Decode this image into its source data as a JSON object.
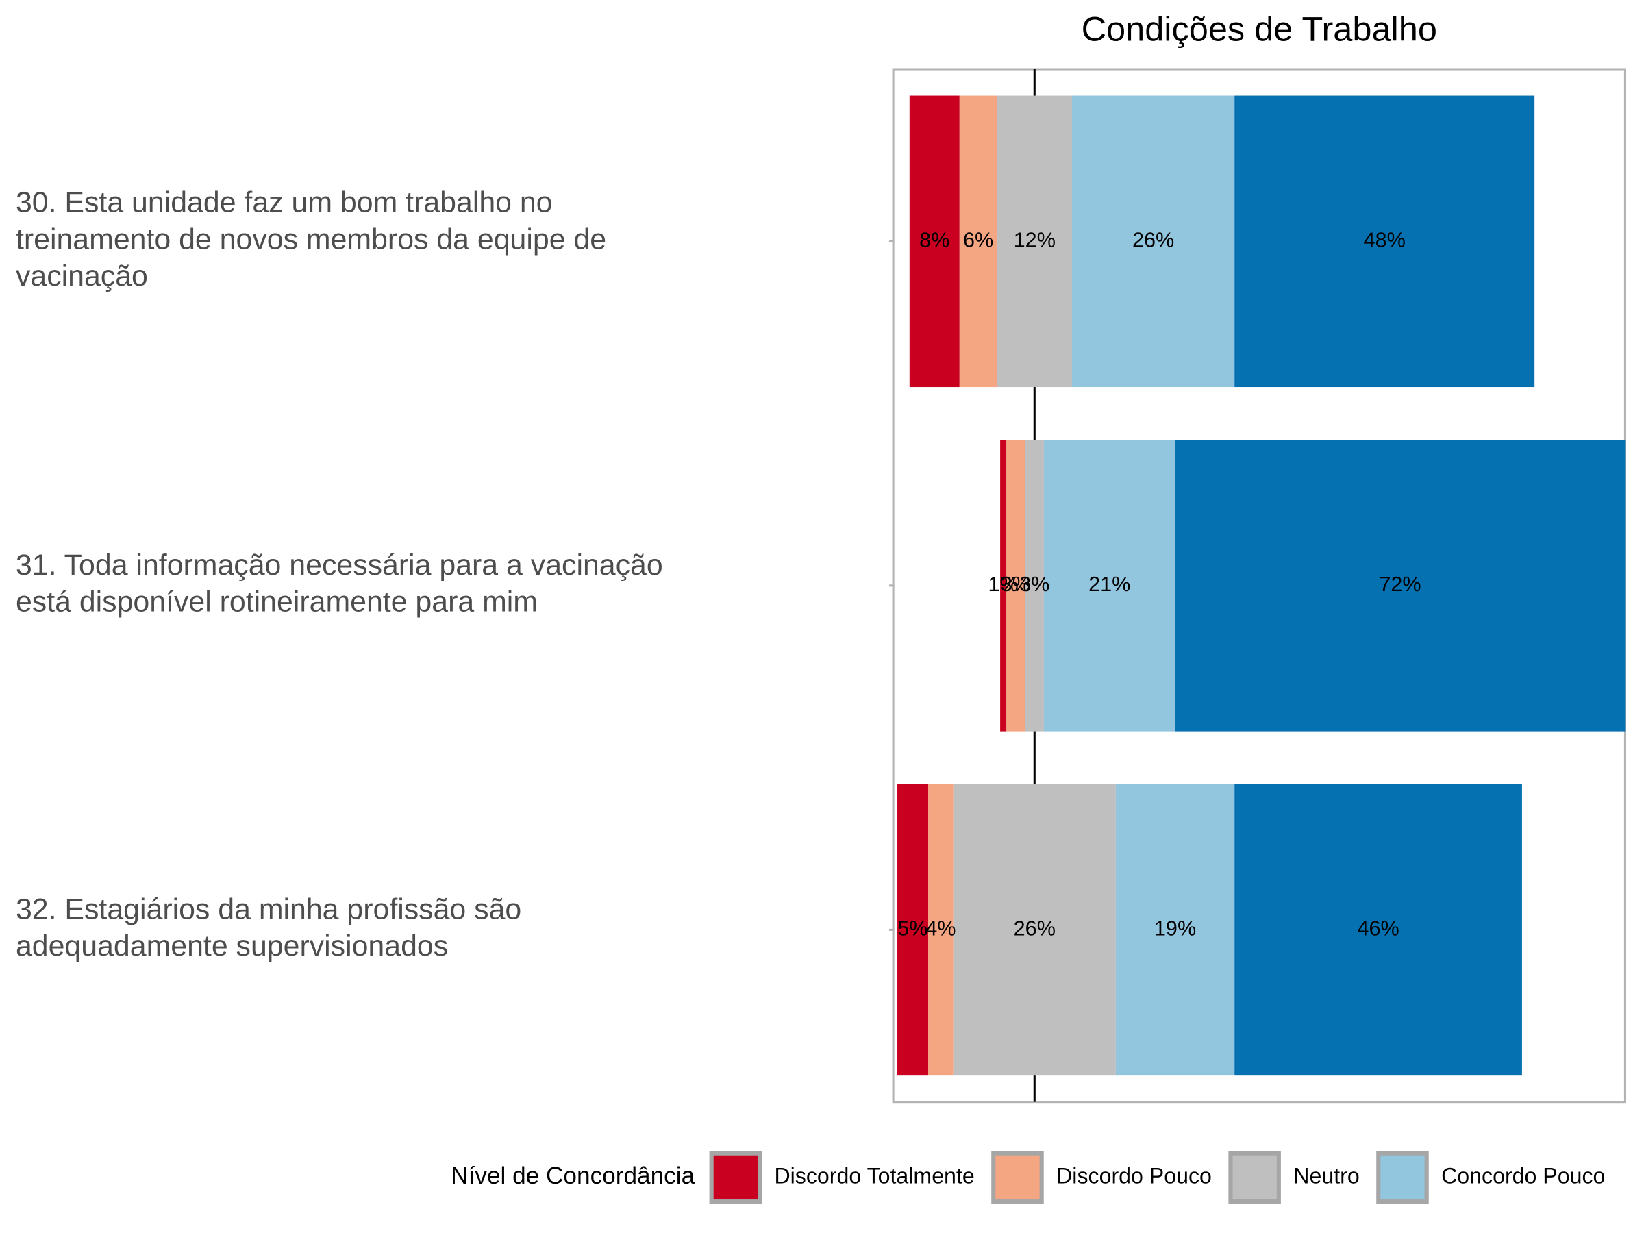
{
  "chart_data": {
    "type": "diverging-stacked-bar",
    "title": "Condições de Trabalho",
    "categories": [
      "30. Esta unidade faz um bom trabalho no treinamento de novos membros da equipe de vacinação",
      "31. Toda informação necessária para a vacinação está disponível rotineiramente para mim",
      "32. Estagiários da minha profissão são adequadamente supervisionados"
    ],
    "series": [
      {
        "name": "Discordo Totalmente",
        "color": "#ca0020",
        "values": [
          8,
          1,
          5
        ],
        "value_labels": [
          "8%",
          "1%",
          "5%"
        ]
      },
      {
        "name": "Discordo Pouco",
        "color": "#f4a582",
        "values": [
          6,
          3,
          4
        ],
        "value_labels": [
          "6%",
          "3%",
          "4%"
        ]
      },
      {
        "name": "Neutro",
        "color": "#bfbfbf",
        "values": [
          12,
          3,
          26
        ],
        "value_labels": [
          "12%",
          "3%",
          "26%"
        ]
      },
      {
        "name": "Concordo Pouco",
        "color": "#92c5de",
        "values": [
          26,
          21,
          19
        ],
        "value_labels": [
          "26%",
          "21%",
          "19%"
        ]
      },
      {
        "color": "#0571b0",
        "values": [
          48,
          72,
          46
        ],
        "value_labels": [
          "48%",
          "72%",
          "46%"
        ]
      }
    ],
    "xlim": [
      -22.6,
      94.5
    ],
    "legend_title": "Nível de Concordância",
    "legend_position": "bottom"
  }
}
